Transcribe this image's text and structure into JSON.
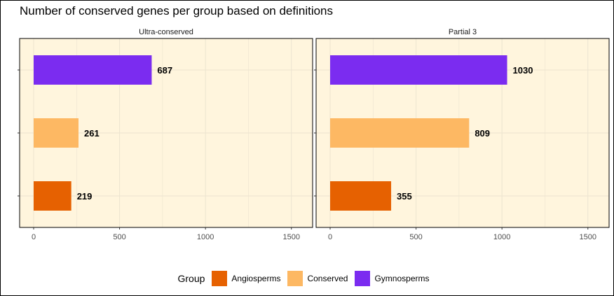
{
  "colors": {
    "Angiosperms": "#e66101",
    "Conserved": "#fdb863",
    "Gymnosperms": "#7b2cf0",
    "panel_bg": "#fff5dd",
    "grid": "#ece4d0"
  },
  "chart_data": {
    "type": "bar",
    "orientation": "horizontal",
    "title": "Number of conserved genes per group based on definitions",
    "categories": [
      "Angiosperms",
      "Conserved",
      "Gymnosperms"
    ],
    "xlim": [
      0,
      1550
    ],
    "xticks": [
      0,
      500,
      1000,
      1500
    ],
    "grid": true,
    "legend_position": "bottom",
    "legend_title": "Group",
    "legend_entries": [
      "Angiosperms",
      "Conserved",
      "Gymnosperms"
    ],
    "panels": [
      {
        "name": "Ultra-conserved",
        "values": [
          219,
          261,
          687
        ]
      },
      {
        "name": "Partial 3",
        "values": [
          355,
          809,
          1030
        ]
      }
    ]
  }
}
